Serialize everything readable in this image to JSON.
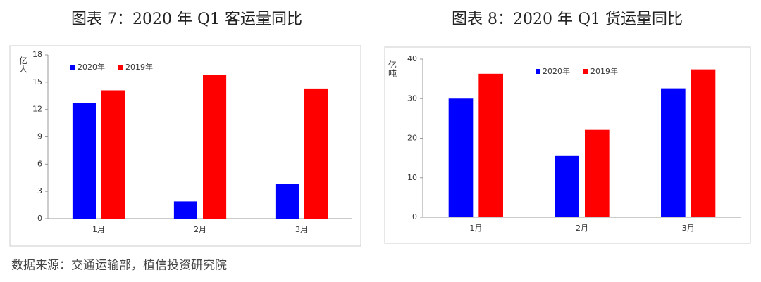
{
  "chart_data": [
    {
      "type": "bar",
      "title": "图表 7：2020 年 Q1 客运量同比",
      "y_label": "亿人",
      "categories": [
        "1月",
        "2月",
        "3月"
      ],
      "series": [
        {
          "name": "2020年",
          "color": "#0000ff",
          "values": [
            12.7,
            1.9,
            3.8
          ]
        },
        {
          "name": "2019年",
          "color": "#ff0000",
          "values": [
            14.1,
            15.8,
            14.3
          ]
        }
      ],
      "ylim": [
        0,
        18
      ],
      "yticks": [
        0,
        3,
        6,
        9,
        12,
        15,
        18
      ],
      "legend": "top"
    },
    {
      "type": "bar",
      "title": "图表 8：2020 年 Q1 货运量同比",
      "y_label": "亿吨",
      "categories": [
        "1月",
        "2月",
        "3月"
      ],
      "series": [
        {
          "name": "2020年",
          "color": "#0000ff",
          "values": [
            30.0,
            15.5,
            32.6
          ]
        },
        {
          "name": "2019年",
          "color": "#ff0000",
          "values": [
            36.3,
            22.1,
            37.4
          ]
        }
      ],
      "ylim": [
        0,
        40
      ],
      "yticks": [
        0,
        10,
        20,
        30,
        40
      ],
      "legend": "top"
    }
  ],
  "source": "数据来源：交通运输部，植信投资研究院"
}
